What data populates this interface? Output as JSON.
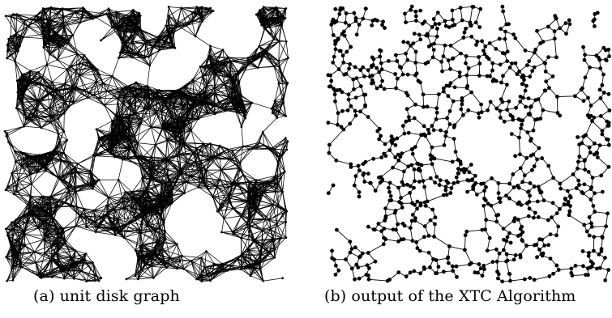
{
  "figure": {
    "panel_a": {
      "caption": "(a) unit disk graph",
      "graph_type": "unit disk graph",
      "style": "dense edges, small nodes"
    },
    "panel_b": {
      "caption": "(b) output of the XTC Algorithm",
      "graph_type": "XTC topology",
      "style": "sparse edges, larger nodes"
    },
    "colors": {
      "edge": "#000000",
      "node": "#000000",
      "background": "#ffffff"
    }
  }
}
